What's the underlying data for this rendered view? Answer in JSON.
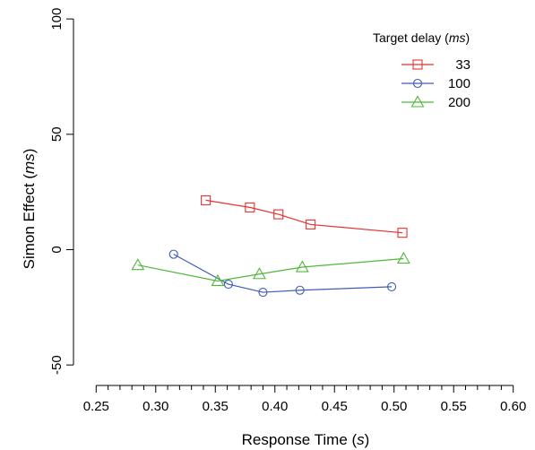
{
  "chart_data": {
    "type": "line",
    "xlabel": "Response Time (",
    "xlabel_unit": "s",
    "xlabel_close": ")",
    "ylabel": "Simon Effect (",
    "ylabel_unit": "ms",
    "ylabel_close": ")",
    "xlim": [
      0.24,
      0.61
    ],
    "ylim": [
      -55,
      102
    ],
    "xticks": [
      0.25,
      0.3,
      0.35,
      0.4,
      0.45,
      0.5,
      0.55,
      0.6
    ],
    "xtick_labels": [
      "0.25",
      "0.30",
      "0.35",
      "0.40",
      "0.45",
      "0.50",
      "0.55",
      "0.60"
    ],
    "x_minor_step": 0.01,
    "yticks": [
      -50,
      0,
      50,
      100
    ],
    "ytick_labels": [
      "-50",
      "0",
      "50",
      "100"
    ],
    "grid": false,
    "legend": {
      "title": "Target delay (",
      "title_unit": "ms",
      "title_close": ")",
      "placement": "top-right"
    },
    "series": [
      {
        "name": "33",
        "color": "#e8312f",
        "marker": "square",
        "x": [
          0.342,
          0.379,
          0.403,
          0.43,
          0.507
        ],
        "y": [
          21.4,
          18.3,
          15.3,
          10.9,
          7.3
        ]
      },
      {
        "name": "100",
        "color": "#3f5bb4",
        "marker": "circle",
        "x": [
          0.315,
          0.361,
          0.39,
          0.421,
          0.498
        ],
        "y": [
          -2.0,
          -15.0,
          -18.5,
          -17.6,
          -16.1
        ]
      },
      {
        "name": "200",
        "color": "#4fb83a",
        "marker": "triangle",
        "x": [
          0.285,
          0.352,
          0.387,
          0.423,
          0.508
        ],
        "y": [
          -6.7,
          -13.6,
          -10.6,
          -7.6,
          -3.9
        ]
      }
    ]
  }
}
